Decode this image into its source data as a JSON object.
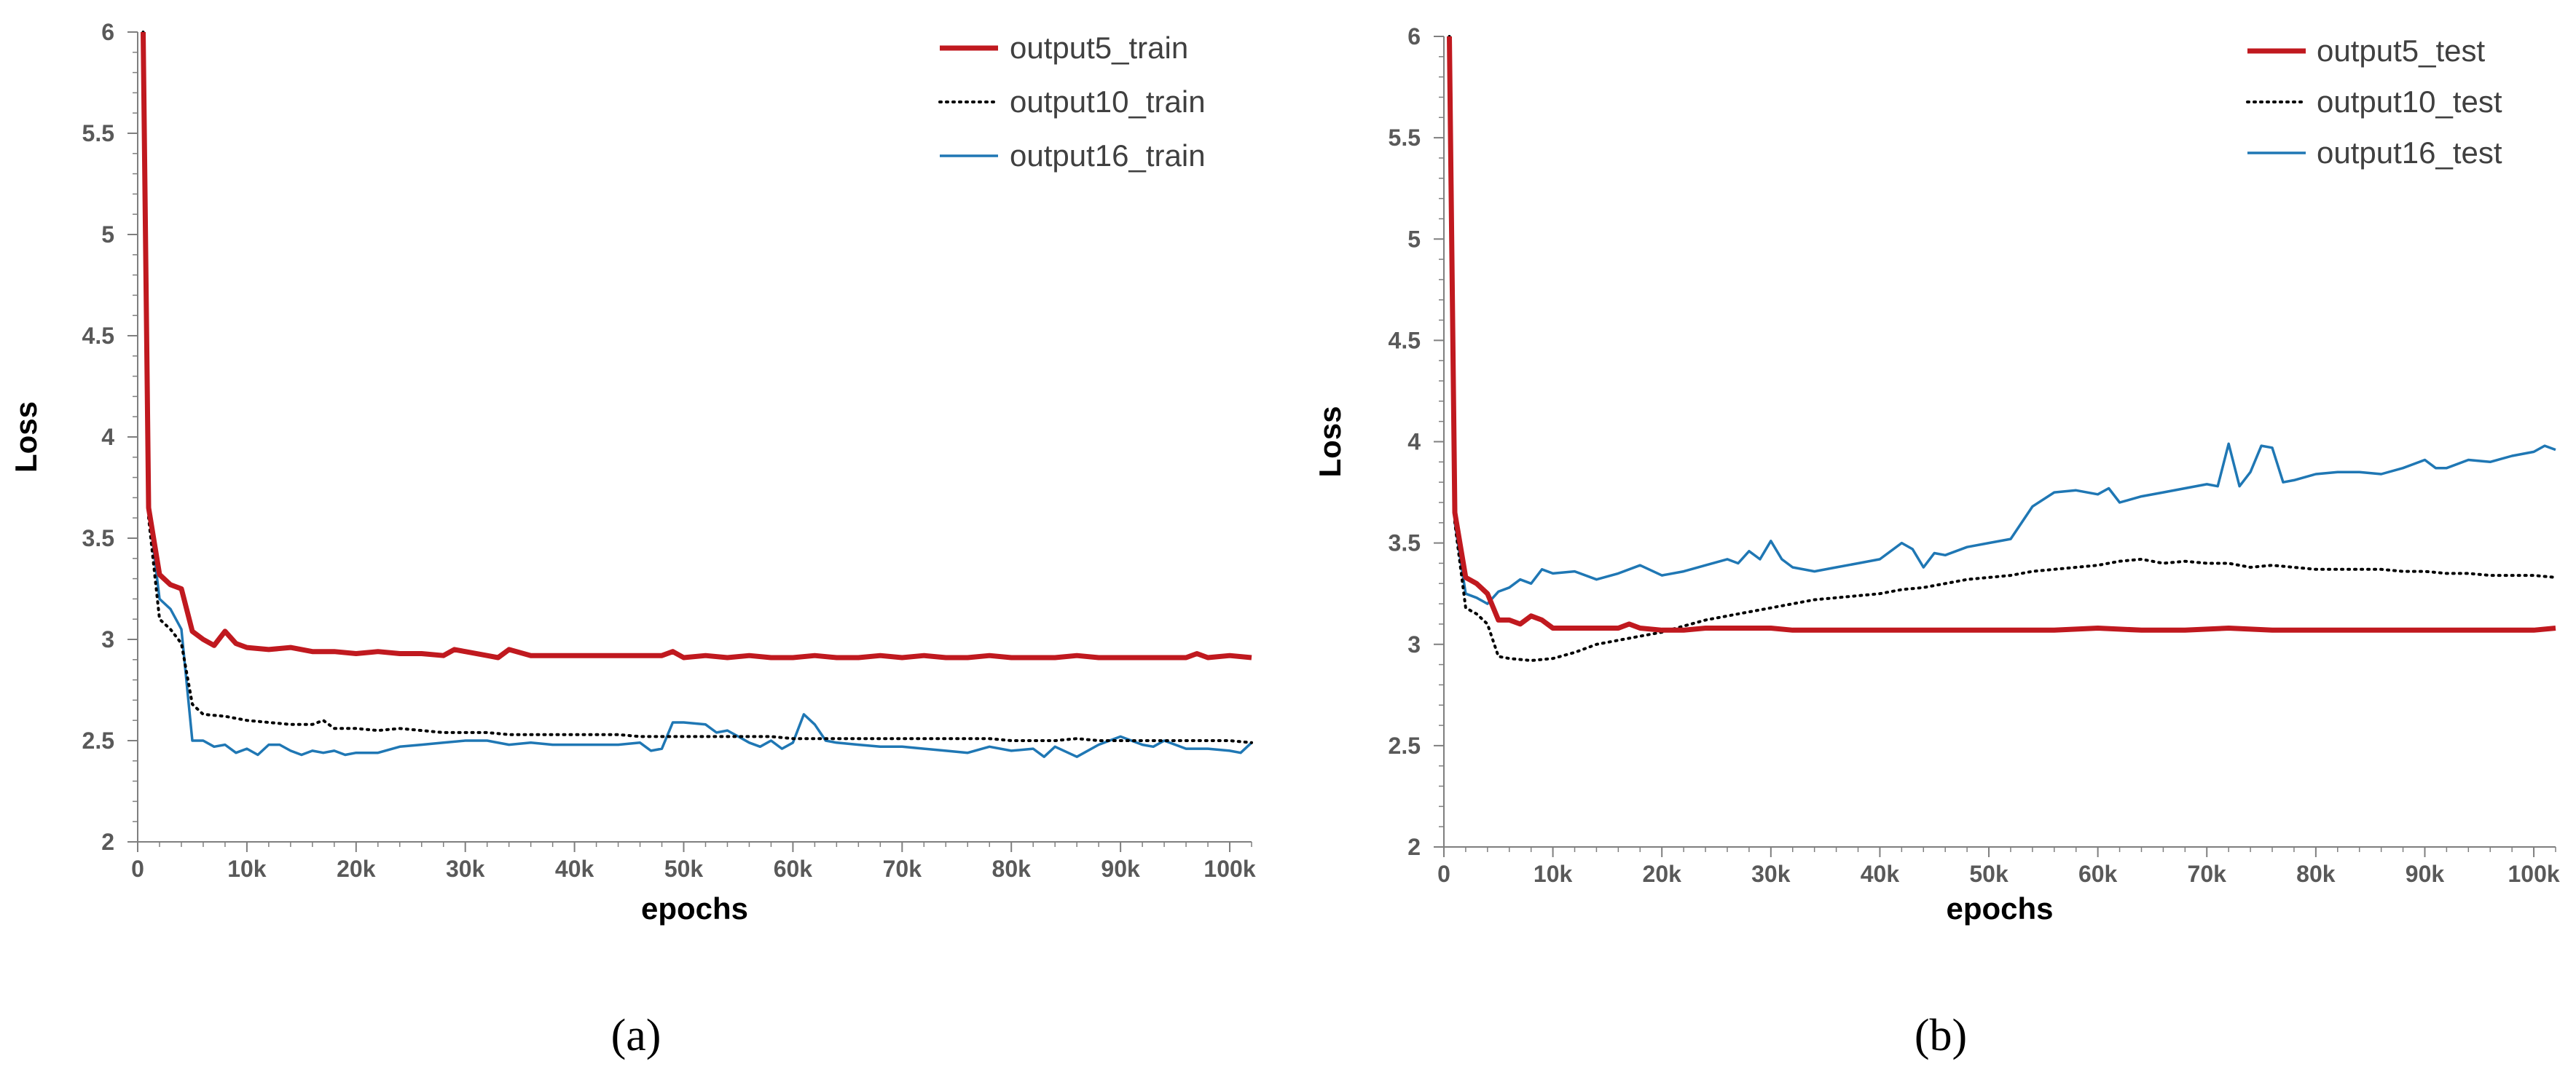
{
  "chart_data": [
    {
      "id": "a",
      "type": "line",
      "caption": "(a)",
      "xlabel": "epochs",
      "ylabel": "Loss",
      "xlim": [
        0,
        102000
      ],
      "ylim": [
        2,
        6
      ],
      "yticks": [
        2,
        2.5,
        3,
        3.5,
        4,
        4.5,
        5,
        5.5,
        6
      ],
      "yticklabels": [
        "2",
        "2.5",
        "3",
        "3.5",
        "4",
        "4.5",
        "5",
        "5.5",
        "6"
      ],
      "xticks": [
        0,
        10000,
        20000,
        30000,
        40000,
        50000,
        60000,
        70000,
        80000,
        90000,
        100000
      ],
      "xticklabels": [
        "0",
        "10k",
        "20k",
        "30k",
        "40k",
        "50k",
        "60k",
        "70k",
        "80k",
        "90k",
        "100k"
      ],
      "legend_position": "top-right",
      "series": [
        {
          "name": "output5_train",
          "color": "#c0191f",
          "style": "solid-thick",
          "x": [
            500,
            1000,
            2000,
            3000,
            4000,
            5000,
            6000,
            7000,
            8000,
            9000,
            10000,
            12000,
            14000,
            16000,
            18000,
            20000,
            22000,
            24000,
            26000,
            28000,
            29000,
            30000,
            32000,
            33000,
            34000,
            36000,
            38000,
            40000,
            42000,
            44000,
            46000,
            48000,
            49000,
            50000,
            52000,
            54000,
            56000,
            58000,
            60000,
            62000,
            64000,
            66000,
            68000,
            70000,
            72000,
            74000,
            76000,
            78000,
            80000,
            82000,
            84000,
            86000,
            88000,
            90000,
            92000,
            94000,
            96000,
            97000,
            98000,
            100000,
            102000
          ],
          "y": [
            6.0,
            3.65,
            3.32,
            3.27,
            3.25,
            3.04,
            3.0,
            2.97,
            3.04,
            2.98,
            2.96,
            2.95,
            2.96,
            2.94,
            2.94,
            2.93,
            2.94,
            2.93,
            2.93,
            2.92,
            2.95,
            2.94,
            2.92,
            2.91,
            2.95,
            2.92,
            2.92,
            2.92,
            2.92,
            2.92,
            2.92,
            2.92,
            2.94,
            2.91,
            2.92,
            2.91,
            2.92,
            2.91,
            2.91,
            2.92,
            2.91,
            2.91,
            2.92,
            2.91,
            2.92,
            2.91,
            2.91,
            2.92,
            2.91,
            2.91,
            2.91,
            2.92,
            2.91,
            2.91,
            2.91,
            2.91,
            2.91,
            2.93,
            2.91,
            2.92,
            2.91
          ]
        },
        {
          "name": "output10_train",
          "color": "#000000",
          "style": "dotted",
          "x": [
            500,
            1000,
            2000,
            3000,
            4000,
            5000,
            6000,
            8000,
            10000,
            12000,
            14000,
            16000,
            17000,
            18000,
            20000,
            22000,
            24000,
            26000,
            28000,
            30000,
            32000,
            34000,
            36000,
            38000,
            40000,
            42000,
            44000,
            46000,
            48000,
            50000,
            52000,
            54000,
            56000,
            58000,
            60000,
            62000,
            64000,
            66000,
            68000,
            70000,
            72000,
            74000,
            76000,
            78000,
            80000,
            82000,
            84000,
            86000,
            88000,
            90000,
            92000,
            94000,
            96000,
            98000,
            100000,
            102000
          ],
          "y": [
            6.0,
            3.6,
            3.1,
            3.05,
            2.98,
            2.68,
            2.63,
            2.62,
            2.6,
            2.59,
            2.58,
            2.58,
            2.6,
            2.56,
            2.56,
            2.55,
            2.56,
            2.55,
            2.54,
            2.54,
            2.54,
            2.53,
            2.53,
            2.53,
            2.53,
            2.53,
            2.53,
            2.52,
            2.52,
            2.52,
            2.52,
            2.52,
            2.52,
            2.52,
            2.51,
            2.51,
            2.51,
            2.51,
            2.51,
            2.51,
            2.51,
            2.51,
            2.51,
            2.51,
            2.5,
            2.5,
            2.5,
            2.51,
            2.5,
            2.5,
            2.5,
            2.5,
            2.5,
            2.5,
            2.5,
            2.49
          ]
        },
        {
          "name": "output16_train",
          "color": "#1f77b4",
          "style": "solid",
          "x": [
            500,
            1000,
            2000,
            3000,
            4000,
            5000,
            6000,
            7000,
            8000,
            9000,
            10000,
            11000,
            12000,
            13000,
            14000,
            15000,
            16000,
            17000,
            18000,
            19000,
            20000,
            22000,
            24000,
            26000,
            28000,
            30000,
            32000,
            34000,
            36000,
            38000,
            40000,
            42000,
            44000,
            46000,
            47000,
            48000,
            49000,
            50000,
            52000,
            53000,
            54000,
            55000,
            56000,
            57000,
            58000,
            59000,
            60000,
            61000,
            62000,
            63000,
            64000,
            66000,
            68000,
            70000,
            72000,
            74000,
            76000,
            78000,
            80000,
            82000,
            83000,
            84000,
            86000,
            88000,
            90000,
            92000,
            93000,
            94000,
            96000,
            98000,
            100000,
            101000,
            102000
          ],
          "y": [
            6.0,
            3.65,
            3.2,
            3.15,
            3.05,
            2.5,
            2.5,
            2.47,
            2.48,
            2.44,
            2.46,
            2.43,
            2.48,
            2.48,
            2.45,
            2.43,
            2.45,
            2.44,
            2.45,
            2.43,
            2.44,
            2.44,
            2.47,
            2.48,
            2.49,
            2.5,
            2.5,
            2.48,
            2.49,
            2.48,
            2.48,
            2.48,
            2.48,
            2.49,
            2.45,
            2.46,
            2.59,
            2.59,
            2.58,
            2.54,
            2.55,
            2.52,
            2.49,
            2.47,
            2.5,
            2.46,
            2.49,
            2.63,
            2.58,
            2.5,
            2.49,
            2.48,
            2.47,
            2.47,
            2.46,
            2.45,
            2.44,
            2.47,
            2.45,
            2.46,
            2.42,
            2.47,
            2.42,
            2.48,
            2.52,
            2.48,
            2.47,
            2.5,
            2.46,
            2.46,
            2.45,
            2.44,
            2.49
          ]
        }
      ]
    },
    {
      "id": "b",
      "type": "line",
      "caption": "(b)",
      "xlabel": "epochs",
      "ylabel": "Loss",
      "xlim": [
        0,
        102000
      ],
      "ylim": [
        2,
        6
      ],
      "yticks": [
        2,
        2.5,
        3,
        3.5,
        4,
        4.5,
        5,
        5.5,
        6
      ],
      "yticklabels": [
        "2",
        "2.5",
        "3",
        "3.5",
        "4",
        "4.5",
        "5",
        "5.5",
        "6"
      ],
      "xticks": [
        0,
        10000,
        20000,
        30000,
        40000,
        50000,
        60000,
        70000,
        80000,
        90000,
        100000
      ],
      "xticklabels": [
        "0",
        "10k",
        "20k",
        "30k",
        "40k",
        "50k",
        "60k",
        "70k",
        "80k",
        "90k",
        "100k"
      ],
      "legend_position": "top-right",
      "series": [
        {
          "name": "output5_test",
          "color": "#c0191f",
          "style": "solid-thick",
          "x": [
            500,
            1000,
            2000,
            3000,
            4000,
            5000,
            6000,
            7000,
            8000,
            9000,
            10000,
            12000,
            14000,
            16000,
            17000,
            18000,
            20000,
            22000,
            24000,
            26000,
            28000,
            30000,
            32000,
            34000,
            36000,
            38000,
            40000,
            44000,
            48000,
            52000,
            56000,
            60000,
            64000,
            68000,
            72000,
            76000,
            80000,
            84000,
            88000,
            92000,
            96000,
            100000,
            102000
          ],
          "y": [
            6.0,
            3.65,
            3.33,
            3.3,
            3.25,
            3.12,
            3.12,
            3.1,
            3.14,
            3.12,
            3.08,
            3.08,
            3.08,
            3.08,
            3.1,
            3.08,
            3.07,
            3.07,
            3.08,
            3.08,
            3.08,
            3.08,
            3.07,
            3.07,
            3.07,
            3.07,
            3.07,
            3.07,
            3.07,
            3.07,
            3.07,
            3.08,
            3.07,
            3.07,
            3.08,
            3.07,
            3.07,
            3.07,
            3.07,
            3.07,
            3.07,
            3.07,
            3.08
          ]
        },
        {
          "name": "output10_test",
          "color": "#000000",
          "style": "dotted",
          "x": [
            500,
            1000,
            2000,
            3000,
            4000,
            5000,
            6000,
            8000,
            10000,
            12000,
            14000,
            16000,
            18000,
            20000,
            22000,
            24000,
            26000,
            28000,
            30000,
            32000,
            34000,
            36000,
            38000,
            40000,
            42000,
            44000,
            46000,
            48000,
            50000,
            52000,
            54000,
            56000,
            58000,
            60000,
            62000,
            64000,
            66000,
            68000,
            70000,
            72000,
            74000,
            76000,
            78000,
            80000,
            82000,
            84000,
            86000,
            88000,
            90000,
            92000,
            94000,
            96000,
            98000,
            100000,
            102000
          ],
          "y": [
            6.0,
            3.6,
            3.18,
            3.15,
            3.1,
            2.94,
            2.93,
            2.92,
            2.93,
            2.96,
            3.0,
            3.02,
            3.04,
            3.06,
            3.09,
            3.12,
            3.14,
            3.16,
            3.18,
            3.2,
            3.22,
            3.23,
            3.24,
            3.25,
            3.27,
            3.28,
            3.3,
            3.32,
            3.33,
            3.34,
            3.36,
            3.37,
            3.38,
            3.39,
            3.41,
            3.42,
            3.4,
            3.41,
            3.4,
            3.4,
            3.38,
            3.39,
            3.38,
            3.37,
            3.37,
            3.37,
            3.37,
            3.36,
            3.36,
            3.35,
            3.35,
            3.34,
            3.34,
            3.34,
            3.33
          ]
        },
        {
          "name": "output16_test",
          "color": "#1f77b4",
          "style": "solid",
          "x": [
            500,
            1000,
            2000,
            3000,
            4000,
            5000,
            6000,
            7000,
            8000,
            9000,
            10000,
            12000,
            14000,
            16000,
            18000,
            20000,
            22000,
            24000,
            26000,
            27000,
            28000,
            29000,
            30000,
            31000,
            32000,
            34000,
            36000,
            38000,
            40000,
            42000,
            43000,
            44000,
            45000,
            46000,
            48000,
            50000,
            52000,
            54000,
            56000,
            58000,
            60000,
            61000,
            62000,
            64000,
            66000,
            68000,
            70000,
            71000,
            72000,
            73000,
            74000,
            75000,
            76000,
            77000,
            78000,
            80000,
            82000,
            84000,
            86000,
            88000,
            90000,
            91000,
            92000,
            94000,
            96000,
            98000,
            100000,
            101000,
            102000
          ],
          "y": [
            6.0,
            3.6,
            3.25,
            3.23,
            3.2,
            3.26,
            3.28,
            3.32,
            3.3,
            3.37,
            3.35,
            3.36,
            3.32,
            3.35,
            3.39,
            3.34,
            3.36,
            3.39,
            3.42,
            3.4,
            3.46,
            3.42,
            3.51,
            3.42,
            3.38,
            3.36,
            3.38,
            3.4,
            3.42,
            3.5,
            3.47,
            3.38,
            3.45,
            3.44,
            3.48,
            3.5,
            3.52,
            3.68,
            3.75,
            3.76,
            3.74,
            3.77,
            3.7,
            3.73,
            3.75,
            3.77,
            3.79,
            3.78,
            3.99,
            3.78,
            3.85,
            3.98,
            3.97,
            3.8,
            3.81,
            3.84,
            3.85,
            3.85,
            3.84,
            3.87,
            3.91,
            3.87,
            3.87,
            3.91,
            3.9,
            3.93,
            3.95,
            3.98,
            3.96
          ]
        }
      ]
    }
  ]
}
